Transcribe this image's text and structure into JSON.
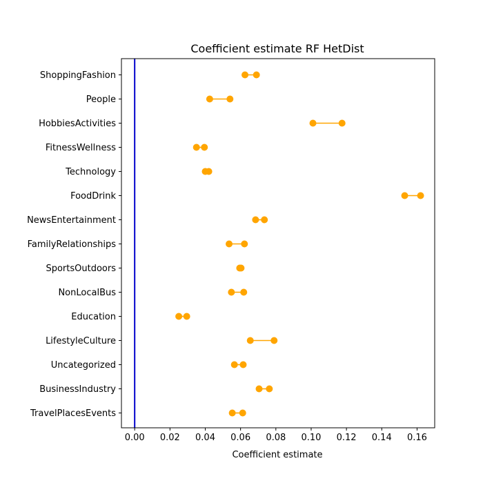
{
  "chart_data": {
    "type": "dumbbell",
    "title": "Coefficient estimate RF  HetDist",
    "xlabel": "Coefficient estimate",
    "ylabel": "",
    "xlim": [
      -0.0075,
      0.17
    ],
    "x_ticks": [
      0.0,
      0.02,
      0.04,
      0.06,
      0.08,
      0.1,
      0.12,
      0.14,
      0.16
    ],
    "x_tick_labels": [
      "0.00",
      "0.02",
      "0.04",
      "0.06",
      "0.08",
      "0.10",
      "0.12",
      "0.14",
      "0.16"
    ],
    "reference_line": {
      "x": 0.0,
      "color": "#0000cc"
    },
    "series_color": "#ffa500",
    "grid": false,
    "categories": [
      "ShoppingFashion",
      "People",
      "HobbiesActivities",
      "FitnessWellness",
      "Technology",
      "FoodDrink",
      "NewsEntertainment",
      "FamilyRelationships",
      "SportsOutdoors",
      "NonLocalBus",
      "Education",
      "LifestyleCulture",
      "Uncategorized",
      "BusinessIndustry",
      "TravelPlacesEvents"
    ],
    "low": [
      0.0625,
      0.0425,
      0.101,
      0.035,
      0.04,
      0.153,
      0.0685,
      0.0535,
      0.0595,
      0.0548,
      0.025,
      0.0655,
      0.0565,
      0.0705,
      0.0553
    ],
    "high": [
      0.069,
      0.054,
      0.1175,
      0.0395,
      0.042,
      0.162,
      0.0735,
      0.0622,
      0.0603,
      0.0618,
      0.0295,
      0.079,
      0.0615,
      0.0763,
      0.0612
    ]
  }
}
